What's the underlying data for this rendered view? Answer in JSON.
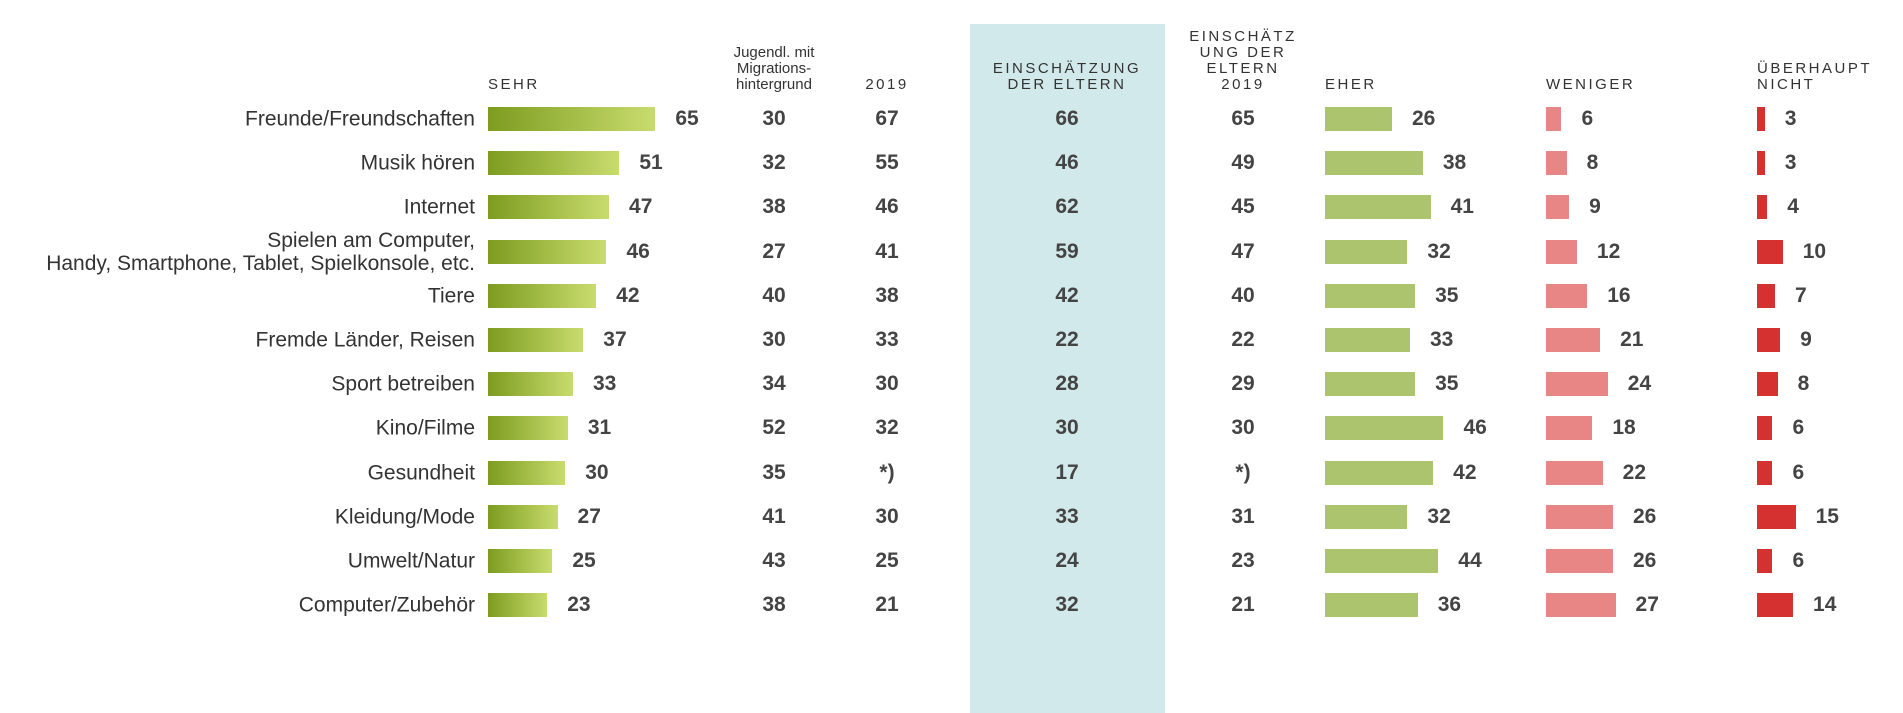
{
  "chart_data": {
    "type": "bar",
    "categories": [
      "Freunde/Freundschaften",
      "Musik hören",
      "Internet",
      "Spielen am Computer,\nHandy, Smartphone, Tablet, Spielkonsole, etc.",
      "Tiere",
      "Fremde Länder, Reisen",
      "Sport betreiben",
      "Kino/Filme",
      "Gesundheit",
      "Kleidung/Mode",
      "Umwelt/Natur",
      "Computer/Zubehör"
    ],
    "series": [
      {
        "name": "SEHR",
        "type": "bar",
        "color": [
          "#7d9c1f",
          "#c8dc6e"
        ],
        "values": [
          65,
          51,
          47,
          46,
          42,
          37,
          33,
          31,
          30,
          27,
          25,
          23
        ]
      },
      {
        "name": "Jugendl. mit\nMigrations-\nhintergrund",
        "type": "table",
        "values": [
          30,
          32,
          38,
          27,
          40,
          30,
          34,
          52,
          35,
          41,
          43,
          38
        ]
      },
      {
        "name": "2019",
        "type": "table",
        "values": [
          67,
          55,
          46,
          41,
          38,
          33,
          30,
          32,
          null,
          30,
          25,
          21
        ],
        "value_labels": [
          "67",
          "55",
          "46",
          "41",
          "38",
          "33",
          "30",
          "32",
          "*)",
          "30",
          "25",
          "21"
        ]
      },
      {
        "name": "EINSCHÄTZUNG\nDER ELTERN",
        "type": "table",
        "highlight": "#d2e9eb",
        "values": [
          66,
          46,
          62,
          59,
          42,
          22,
          28,
          30,
          17,
          33,
          24,
          32
        ]
      },
      {
        "name": "EINSCHÄTZ\nUNG DER\nELTERN\n2019",
        "type": "table",
        "values": [
          65,
          49,
          45,
          47,
          40,
          22,
          29,
          30,
          null,
          31,
          23,
          21
        ],
        "value_labels": [
          "65",
          "49",
          "45",
          "47",
          "40",
          "22",
          "29",
          "30",
          "*)",
          "31",
          "23",
          "21"
        ]
      },
      {
        "name": "EHER",
        "type": "bar",
        "color": "#adc46f",
        "values": [
          26,
          38,
          41,
          32,
          35,
          33,
          35,
          46,
          42,
          32,
          44,
          36
        ]
      },
      {
        "name": "WENIGER",
        "type": "bar",
        "color": "#e88686",
        "values": [
          6,
          8,
          9,
          12,
          16,
          21,
          24,
          18,
          22,
          26,
          26,
          27
        ]
      },
      {
        "name": "ÜBERHAUPT\nNICHT",
        "type": "bar",
        "color": "#d63131",
        "values": [
          3,
          3,
          4,
          10,
          7,
          9,
          8,
          6,
          6,
          15,
          6,
          14
        ]
      }
    ]
  }
}
